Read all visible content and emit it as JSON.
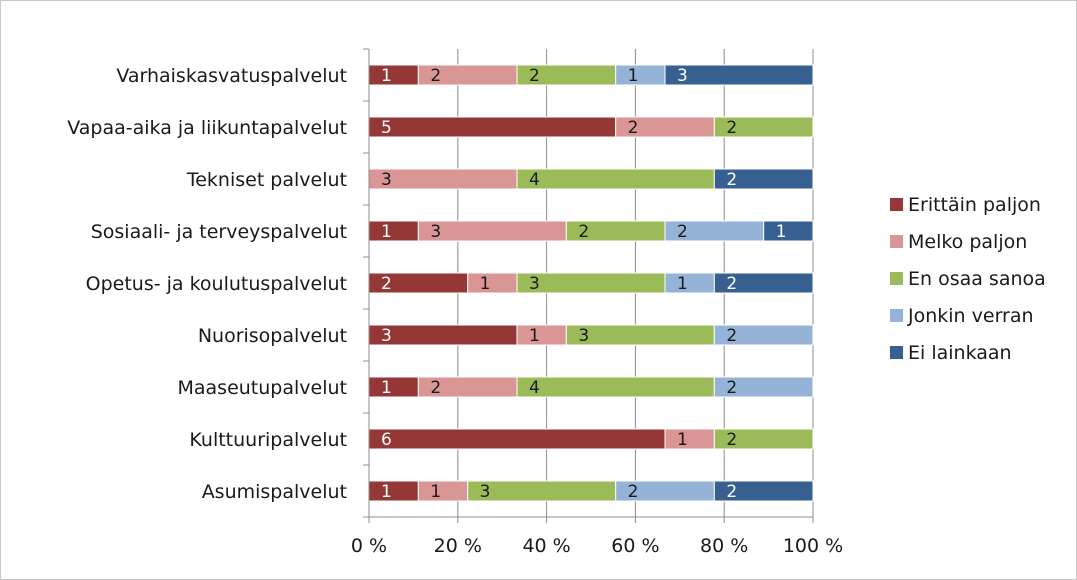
{
  "chart_data": {
    "type": "bar",
    "orientation": "horizontal",
    "stacked": "percent",
    "categories": [
      "Varhaiskasvatuspalvelut",
      "Vapaa-aika ja liikuntapalvelut",
      "Tekniset palvelut",
      "Sosiaali- ja terveyspalvelut",
      "Opetus- ja koulutuspalvelut",
      "Nuorisopalvelut",
      "Maaseutupalvelut",
      "Kulttuuripalvelut",
      "Asumispalvelut"
    ],
    "series": [
      {
        "name": "Erittäin paljon",
        "color": "#953735",
        "label_color": "light",
        "values": [
          1,
          5,
          0,
          1,
          2,
          3,
          1,
          6,
          1
        ]
      },
      {
        "name": "Melko paljon",
        "color": "#d99694",
        "label_color": "dark",
        "values": [
          2,
          2,
          3,
          3,
          1,
          1,
          2,
          1,
          1
        ]
      },
      {
        "name": "En osaa sanoa",
        "color": "#9bbb59",
        "label_color": "dark",
        "values": [
          2,
          2,
          4,
          2,
          3,
          3,
          4,
          2,
          3
        ]
      },
      {
        "name": "Jonkin verran",
        "color": "#95b3d7",
        "label_color": "dark",
        "values": [
          1,
          0,
          0,
          2,
          1,
          2,
          2,
          0,
          2
        ]
      },
      {
        "name": "Ei lainkaan",
        "color": "#376092",
        "label_color": "light",
        "values": [
          3,
          0,
          2,
          1,
          2,
          0,
          0,
          0,
          2
        ]
      }
    ],
    "x_ticks": [
      "0 %",
      "20 %",
      "40 %",
      "60 %",
      "80 %",
      "100 %"
    ],
    "xlim": [
      0,
      100
    ],
    "grid": true,
    "legend_position": "right"
  }
}
